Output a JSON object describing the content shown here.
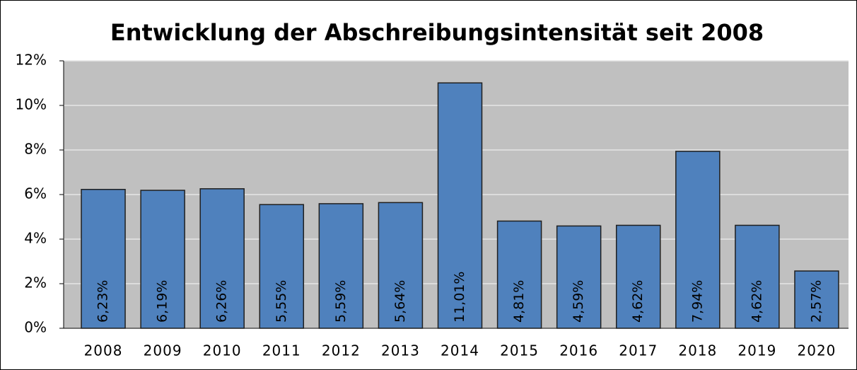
{
  "chart_data": {
    "type": "bar",
    "title": "Entwicklung der Abschreibungsintensität seit 2008",
    "categories": [
      "2008",
      "2009",
      "2010",
      "2011",
      "2012",
      "2013",
      "2014",
      "2015",
      "2016",
      "2017",
      "2018",
      "2019",
      "2020"
    ],
    "values": [
      6.23,
      6.19,
      6.26,
      5.55,
      5.59,
      5.64,
      11.01,
      4.81,
      4.59,
      4.62,
      7.94,
      4.62,
      2.57
    ],
    "value_labels": [
      "6,23%",
      "6,19%",
      "6,26%",
      "5,55%",
      "5,59%",
      "5,64%",
      "11,01%",
      "4,81%",
      "4,59%",
      "4,62%",
      "7,94%",
      "4,62%",
      "2,57%"
    ],
    "color": "#4f81bd",
    "ylim": [
      0,
      12
    ],
    "yticks": [
      {
        "value": 0,
        "label": "0%"
      },
      {
        "value": 2,
        "label": "2%"
      },
      {
        "value": 4,
        "label": "4%"
      },
      {
        "value": 6,
        "label": "6%"
      },
      {
        "value": 8,
        "label": "8%"
      },
      {
        "value": 10,
        "label": "10%"
      },
      {
        "value": 12,
        "label": "12%"
      }
    ],
    "grid": true
  }
}
